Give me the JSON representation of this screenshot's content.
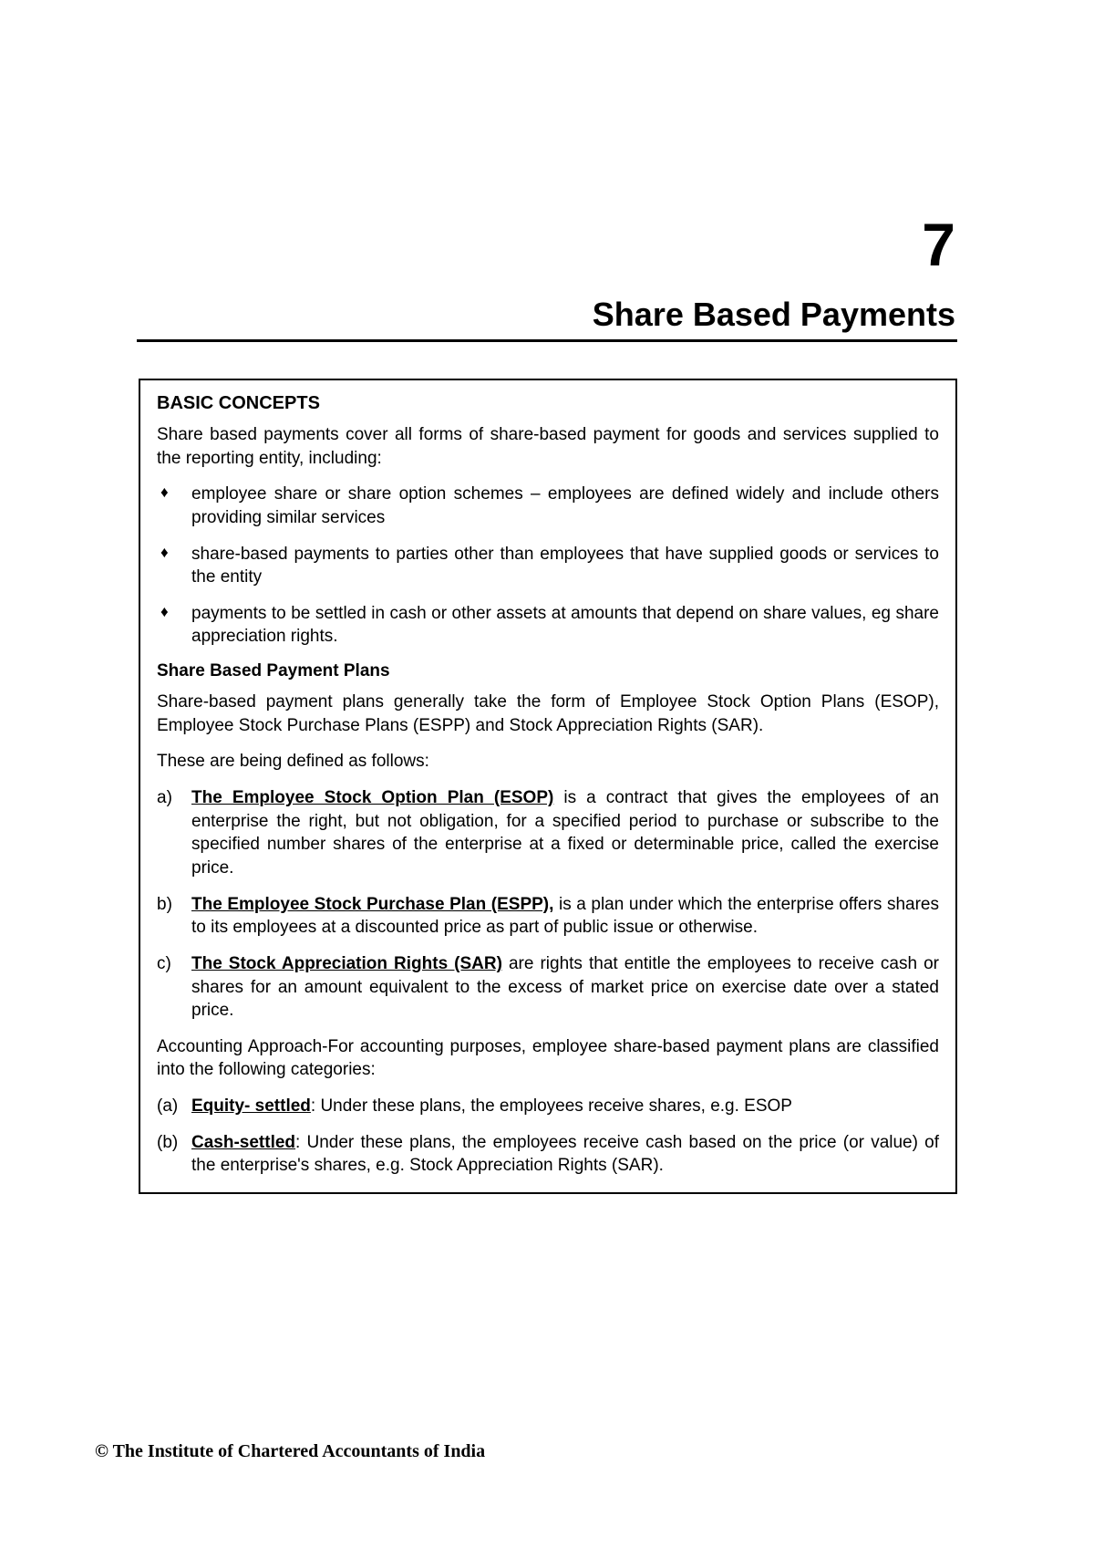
{
  "chapter": {
    "number": "7",
    "title": "Share Based Payments"
  },
  "box": {
    "heading": "BASIC CONCEPTS",
    "intro": "Share based payments cover all forms of share-based payment for goods and services supplied to the reporting entity, including:",
    "bullets": [
      "employee share or share option schemes – employees are defined widely and include others providing similar services",
      "share-based payments to parties other than employees that have supplied goods or services to the entity",
      "payments to be settled in cash or other assets at amounts that depend on share values, eg share appreciation rights."
    ],
    "subheading": "Share Based Payment Plans",
    "para1": "Share-based payment plans generally take the form of Employee Stock Option Plans (ESOP), Employee Stock Purchase Plans (ESPP) and Stock Appreciation Rights (SAR).",
    "para2": "These are being defined as follows:",
    "defs": [
      {
        "marker": "a)",
        "term": "The Employee Stock Option Plan (ESOP)",
        "text": " is a contract that gives the employees of an enterprise the right, but not obligation, for a specified period to purchase or subscribe to the specified number shares of the enterprise at a fixed or determinable price, called the exercise price."
      },
      {
        "marker": "b)",
        "term": "The Employee Stock Purchase Plan (ESPP),",
        "text": " is a plan under which the enterprise offers shares to its employees at a discounted price as part of public issue or otherwise."
      },
      {
        "marker": "c)",
        "term": "The Stock Appreciation Rights (SAR)",
        "text": " are rights that entitle the employees to receive cash or shares for an amount equivalent to the excess of market price on exercise date over a stated price."
      }
    ],
    "para3": "Accounting Approach-For accounting purposes, employee share-based payment plans are classified into the following categories:",
    "cats": [
      {
        "marker": "(a)",
        "term": "Equity- settled",
        "text": ":  Under these plans, the employees receive shares, e.g. ESOP"
      },
      {
        "marker": "(b)",
        "term": "Cash-settled",
        "text": ":  Under these plans, the employees receive cash based on the price (or value) of the enterprise's shares, e.g. Stock Appreciation Rights (SAR)."
      }
    ]
  },
  "footer": "© The Institute of Chartered Accountants of India",
  "style": {
    "page_bg": "#ffffff",
    "text_color": "#000000",
    "border_color": "#000000",
    "chapter_number_fontsize": 66,
    "chapter_title_fontsize": 36,
    "body_fontsize": 19,
    "footer_fontsize": 20,
    "bullet_glyph": "♦"
  }
}
